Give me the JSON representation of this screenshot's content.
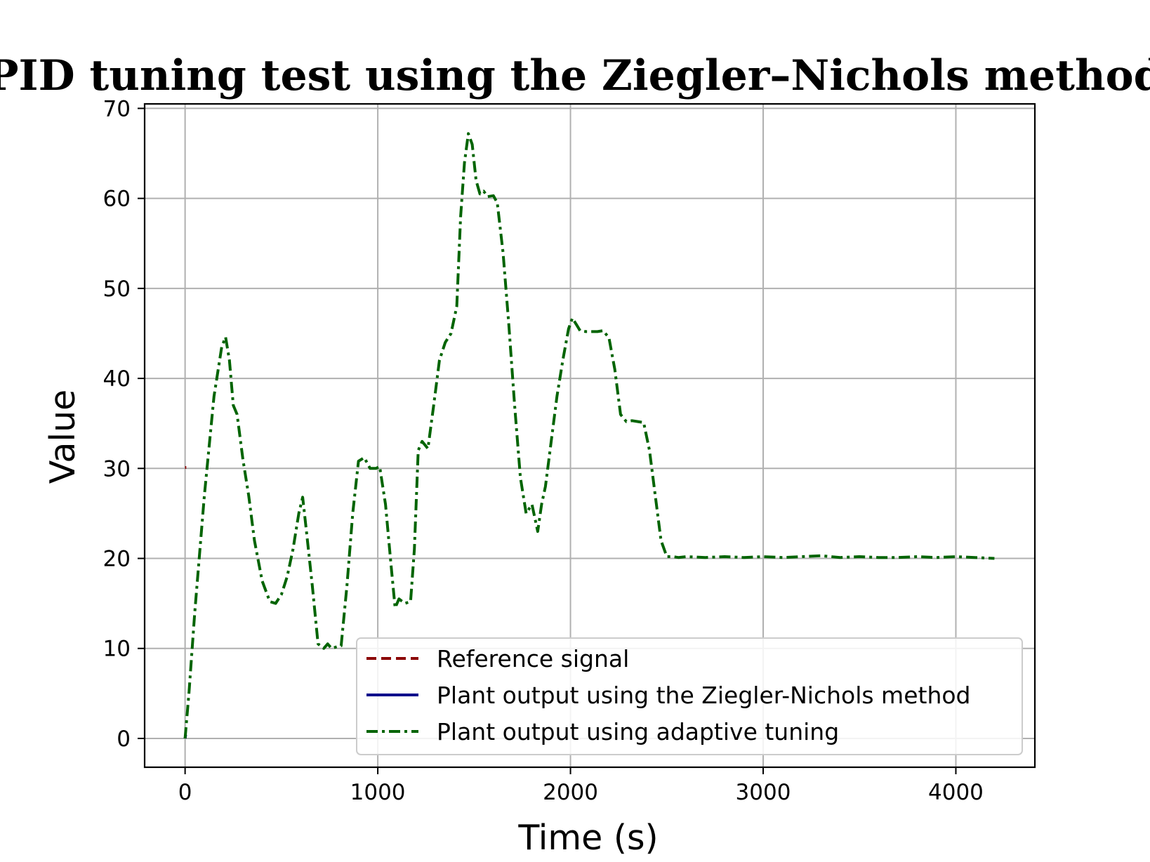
{
  "chart_data": {
    "type": "line",
    "title": "PID tuning test using the Ziegler–Nichols method",
    "xlabel": "Time (s)",
    "ylabel": "Value",
    "xlim": [
      -210,
      4410
    ],
    "ylim": [
      -3.2,
      70.5
    ],
    "xticks": [
      0,
      1000,
      2000,
      3000,
      4000
    ],
    "yticks": [
      0,
      10,
      20,
      30,
      40,
      50,
      60,
      70
    ],
    "grid": true,
    "legend": {
      "placement": "lower-right"
    },
    "series": [
      {
        "name": "Reference signal",
        "color": "#8b0000",
        "style": "dashed",
        "x": [
          0,
          6
        ],
        "y": [
          30.1,
          30.1
        ]
      },
      {
        "name": "Plant output using the Ziegler-Nichols method",
        "color": "#00008b",
        "style": "solid",
        "x": [
          0,
          3
        ],
        "y": [
          0,
          0.4
        ]
      },
      {
        "name": "Plant output using adaptive tuning",
        "color": "#006400",
        "style": "dashdot",
        "x": [
          0,
          20,
          50,
          100,
          150,
          190,
          210,
          230,
          250,
          270,
          300,
          330,
          360,
          400,
          440,
          470,
          500,
          530,
          560,
          590,
          610,
          630,
          660,
          690,
          720,
          740,
          760,
          790,
          810,
          840,
          870,
          900,
          930,
          960,
          990,
          1010,
          1040,
          1070,
          1090,
          1110,
          1140,
          1170,
          1190,
          1210,
          1230,
          1260,
          1290,
          1320,
          1350,
          1380,
          1410,
          1430,
          1450,
          1470,
          1490,
          1510,
          1530,
          1550,
          1570,
          1600,
          1620,
          1650,
          1680,
          1710,
          1740,
          1770,
          1800,
          1830,
          1850,
          1870,
          1900,
          1930,
          1960,
          1990,
          2010,
          2030,
          2050,
          2080,
          2110,
          2140,
          2170,
          2200,
          2230,
          2260,
          2290,
          2320,
          2350,
          2380,
          2410,
          2440,
          2470,
          2500,
          2530,
          2560,
          2600,
          2700,
          2800,
          2900,
          3000,
          3100,
          3200,
          3300,
          3400,
          3500,
          3600,
          3700,
          3800,
          3900,
          4000,
          4100,
          4200
        ],
        "y": [
          0,
          5,
          14,
          27,
          38,
          43.5,
          44.6,
          42,
          37,
          36,
          31,
          27,
          22,
          17.5,
          15.2,
          15.0,
          16,
          18,
          21,
          25,
          26.8,
          23,
          17,
          10.5,
          10.0,
          10.5,
          10.0,
          10.2,
          10.3,
          17,
          25,
          30.8,
          31.2,
          30.0,
          30.0,
          30.2,
          26,
          19,
          14.5,
          15.5,
          15.0,
          15.2,
          21,
          32,
          33,
          32.2,
          37,
          42,
          44,
          45,
          48,
          58,
          64,
          67.2,
          66,
          62,
          60.5,
          60.8,
          60.2,
          60.3,
          59.5,
          54,
          46,
          37,
          29,
          25,
          26,
          23,
          26,
          28,
          33,
          38,
          42,
          45.5,
          46.7,
          46,
          45.3,
          45.2,
          45.2,
          45.2,
          45.3,
          44.5,
          41,
          36,
          35.2,
          35.3,
          35.2,
          35.1,
          32,
          27,
          22,
          20.2,
          20.2,
          20.1,
          20.2,
          20.1,
          20.2,
          20.1,
          20.2,
          20.1,
          20.2,
          20.3,
          20.1,
          20.2,
          20.1,
          20.1,
          20.2,
          20.1,
          20.2,
          20.1,
          20.0
        ]
      }
    ]
  }
}
